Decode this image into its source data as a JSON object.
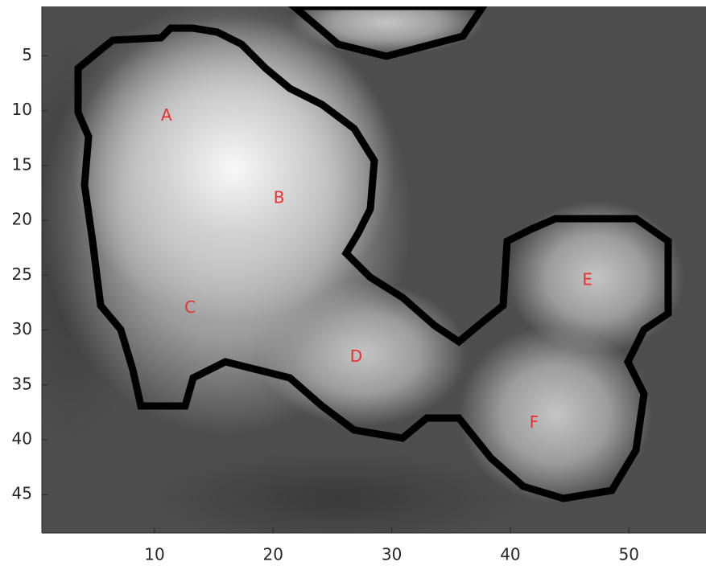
{
  "chart_data": {
    "type": "image",
    "xlim": [
      0.5,
      56.5
    ],
    "ylim": [
      0.5,
      48.5
    ],
    "y_direction": "reverse",
    "xticks": [
      10,
      20,
      30,
      40,
      50
    ],
    "yticks": [
      5,
      10,
      15,
      20,
      25,
      30,
      35,
      40,
      45
    ],
    "colormap": "gray",
    "annotation_color": "#e8302f",
    "annotations": [
      {
        "text": "A",
        "x": 11,
        "y": 10.5
      },
      {
        "text": "B",
        "x": 20.5,
        "y": 18
      },
      {
        "text": "C",
        "x": 13,
        "y": 28
      },
      {
        "text": "D",
        "x": 27,
        "y": 32.5
      },
      {
        "text": "E",
        "x": 46.5,
        "y": 25.5
      },
      {
        "text": "F",
        "x": 42,
        "y": 38.5
      }
    ]
  }
}
